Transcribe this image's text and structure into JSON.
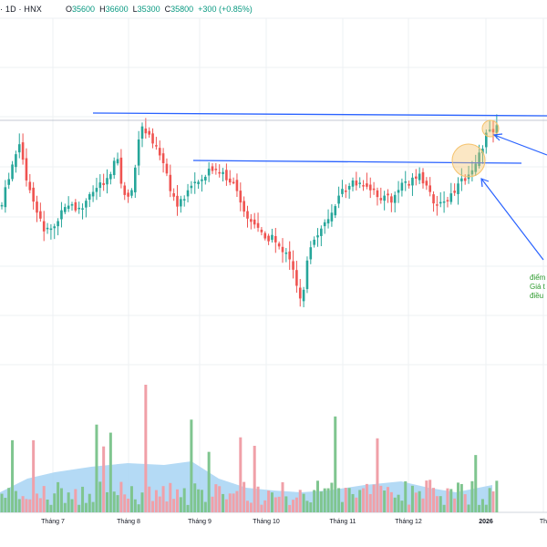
{
  "header": {
    "symbol": "· 1D · HNX",
    "ohlc": [
      {
        "k": "O",
        "v": "35600"
      },
      {
        "k": "H",
        "v": "36600"
      },
      {
        "k": "L",
        "v": "35300"
      },
      {
        "k": "C",
        "v": "35800"
      }
    ],
    "change": "+300 (+0.85%)"
  },
  "annotation_lines": [
    "điểm",
    "Giá t",
    "điều"
  ],
  "colors": {
    "up": "#26a69a",
    "down": "#ef5350",
    "vol_up": "#7fc58f",
    "vol_down": "#f0a0a8",
    "vol_ma_fill": "#a7d3f3",
    "trendline": "#2962ff",
    "highlight": "#f5c26b",
    "annotation": "#2e9b2e",
    "axis_text": "#131722"
  },
  "chart_data": {
    "type": "candlestick",
    "interval": "1D",
    "exchange": "HNX",
    "last_bar": {
      "open": 35600,
      "high": 36600,
      "low": 35300,
      "close": 35800,
      "change": 300,
      "change_pct": 0.85
    },
    "x_ticks": [
      "Tháng 7",
      "Tháng 8",
      "Tháng 9",
      "Tháng 10",
      "Tháng 11",
      "Tháng 12",
      "2026",
      "Th"
    ],
    "horizontal_levels": [
      "resistance_upper",
      "resistance_lower"
    ],
    "grid": true
  }
}
